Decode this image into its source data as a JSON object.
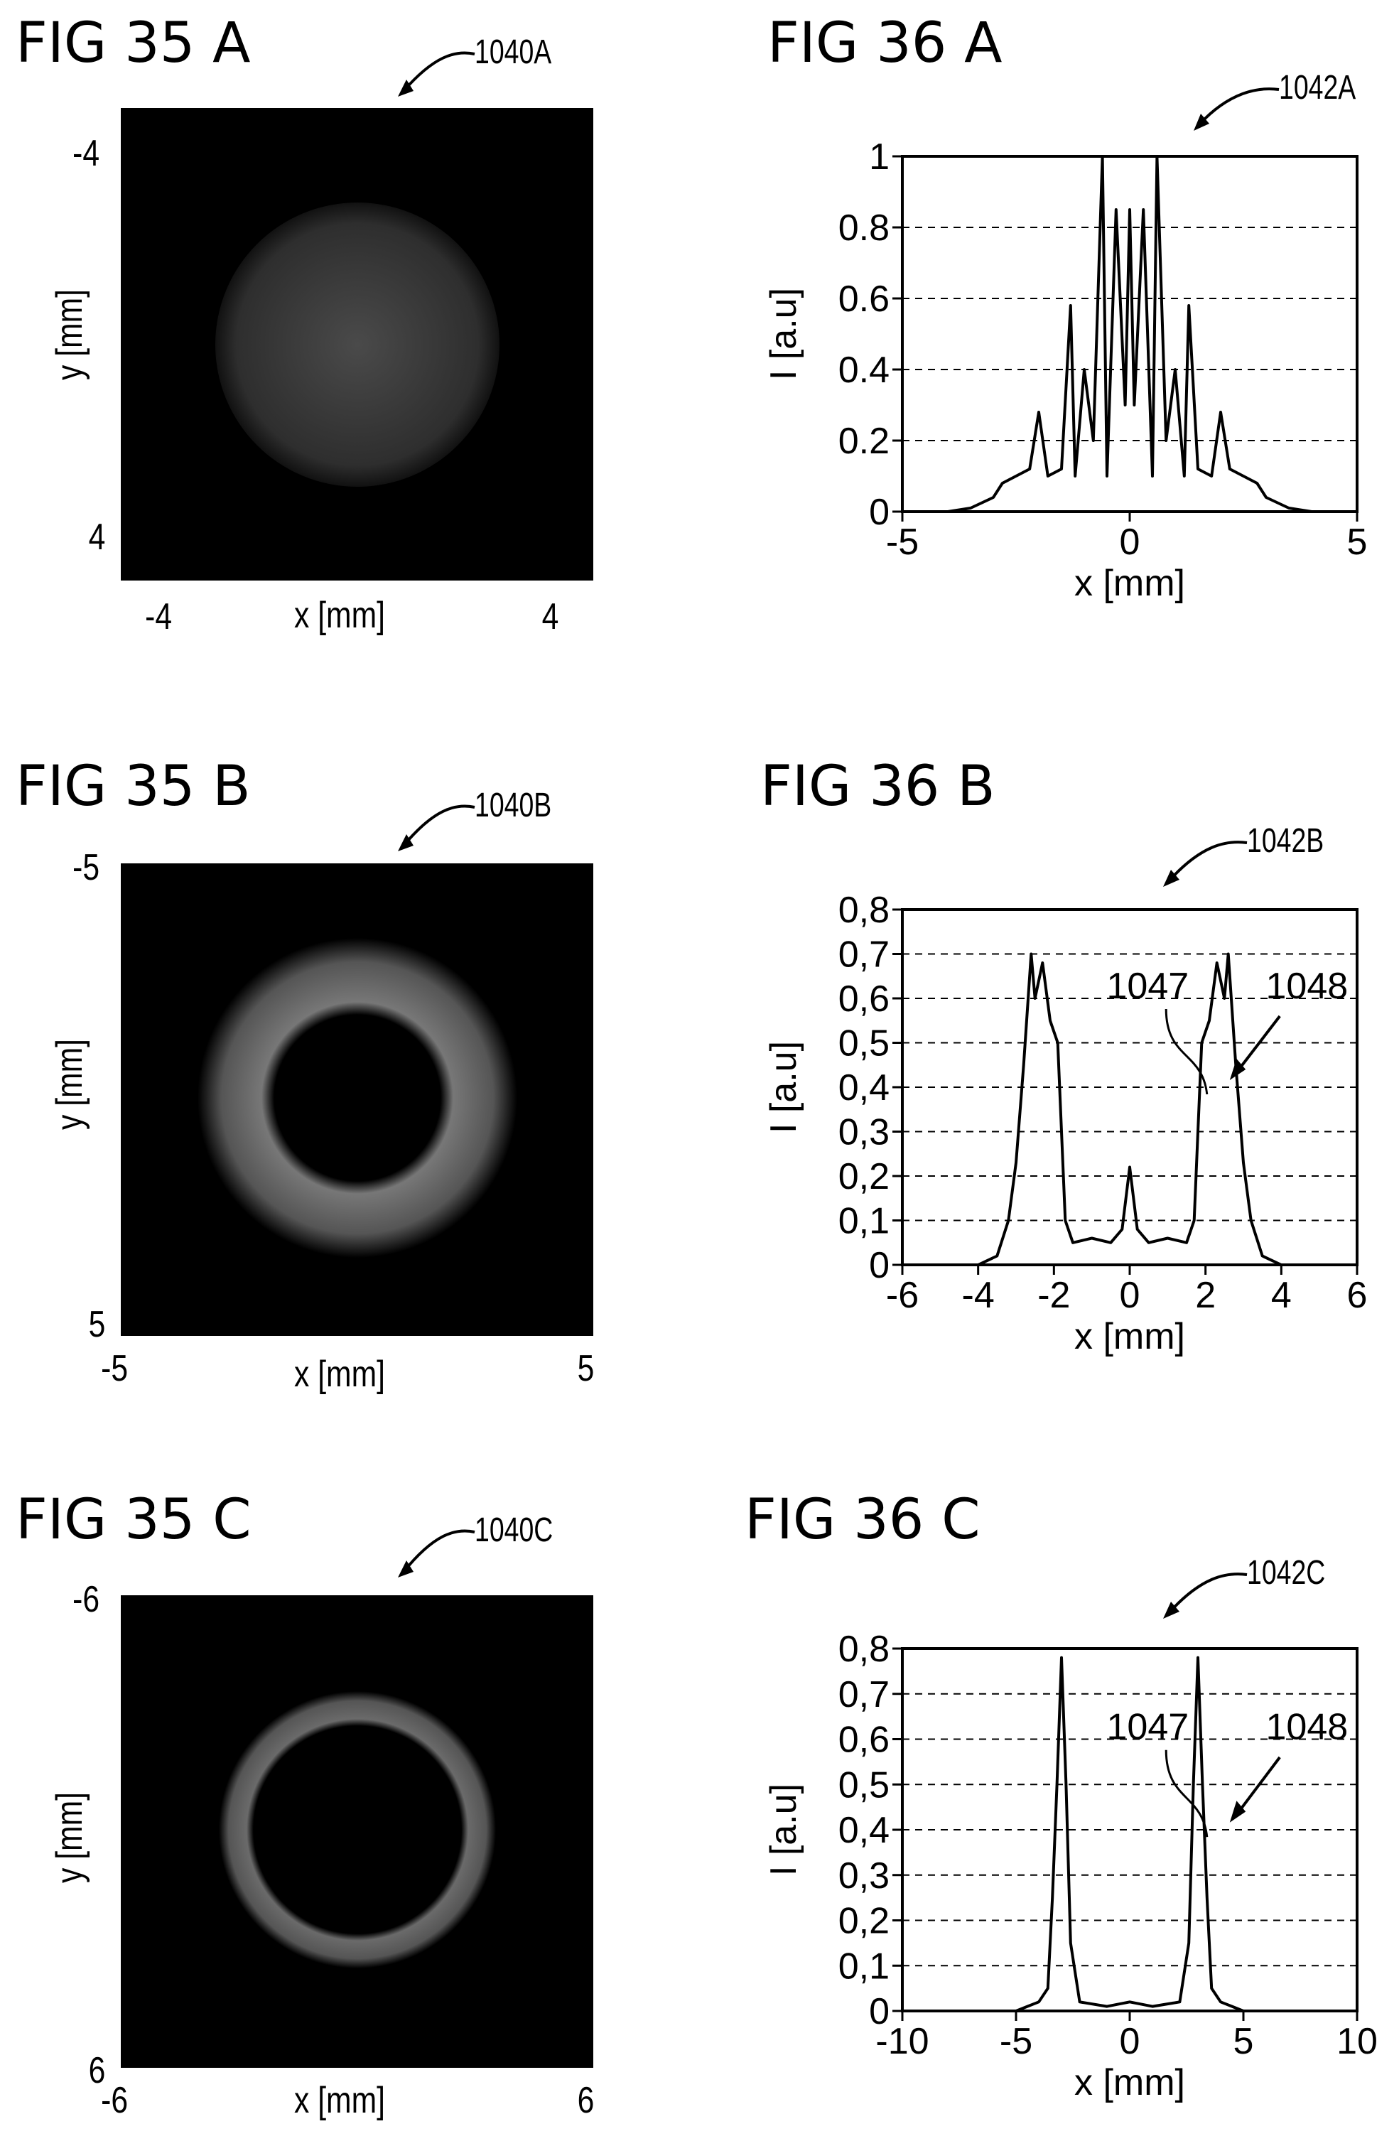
{
  "figures": [
    {
      "id": "35A",
      "title": "FIG 35 A",
      "ref": "1040A",
      "xlabel": "x [mm]",
      "ylabel": "y [mm]",
      "xticks": [
        "-4",
        "4"
      ],
      "yticks": [
        "-4",
        "4"
      ]
    },
    {
      "id": "35B",
      "title": "FIG 35 B",
      "ref": "1040B",
      "xlabel": "x [mm]",
      "ylabel": "y [mm]",
      "xticks": [
        "-5",
        "5"
      ],
      "yticks": [
        "-5",
        "5"
      ]
    },
    {
      "id": "35C",
      "title": "FIG 35 C",
      "ref": "1040C",
      "xlabel": "x [mm]",
      "ylabel": "y [mm]",
      "xticks": [
        "-6",
        "6"
      ],
      "yticks": [
        "-6",
        "6"
      ]
    },
    {
      "id": "36A",
      "title": "FIG 36 A",
      "ref": "1042A"
    },
    {
      "id": "36B",
      "title": "FIG 36 B",
      "ref": "1042B",
      "annotations": [
        "1047",
        "1048"
      ]
    },
    {
      "id": "36C",
      "title": "FIG 36 C",
      "ref": "1042C",
      "annotations": [
        "1047",
        "1048"
      ]
    }
  ],
  "chart_data": [
    {
      "type": "line",
      "name": "FIG 36 A",
      "xlabel": "x [mm]",
      "ylabel": "I [a.u]",
      "xlim": [
        -5,
        5
      ],
      "ylim": [
        0,
        1
      ],
      "xticks": [
        "-5",
        "0",
        "5"
      ],
      "yticks": [
        "0",
        "0.2",
        "0.4",
        "0.6",
        "0.8",
        "1"
      ],
      "grid": "horizontal-dashed",
      "x": [
        -5,
        -4,
        -3.5,
        -3,
        -2.8,
        -2.5,
        -2.2,
        -2,
        -1.8,
        -1.5,
        -1.3,
        -1.2,
        -1,
        -0.8,
        -0.6,
        -0.5,
        -0.3,
        -0.1,
        0,
        0.1,
        0.3,
        0.5,
        0.6,
        0.8,
        1,
        1.2,
        1.3,
        1.5,
        1.8,
        2,
        2.2,
        2.5,
        2.8,
        3,
        3.5,
        4,
        5
      ],
      "y": [
        0,
        0,
        0.01,
        0.04,
        0.08,
        0.1,
        0.12,
        0.28,
        0.1,
        0.12,
        0.58,
        0.1,
        0.4,
        0.2,
        1,
        0.1,
        0.85,
        0.3,
        0.85,
        0.3,
        0.85,
        0.1,
        1,
        0.2,
        0.4,
        0.1,
        0.58,
        0.12,
        0.1,
        0.28,
        0.12,
        0.1,
        0.08,
        0.04,
        0.01,
        0,
        0
      ]
    },
    {
      "type": "line",
      "name": "FIG 36 B",
      "xlabel": "x [mm]",
      "ylabel": "I [a.u]",
      "xlim": [
        -6,
        6
      ],
      "ylim": [
        0,
        0.8
      ],
      "xticks": [
        "-6",
        "-4",
        "-2",
        "0",
        "2",
        "4",
        "6"
      ],
      "yticks": [
        "0",
        "0,1",
        "0,2",
        "0,3",
        "0,4",
        "0,5",
        "0,6",
        "0,7",
        "0,8"
      ],
      "grid": "horizontal-dashed",
      "x": [
        -6,
        -4,
        -3.5,
        -3.2,
        -3,
        -2.8,
        -2.6,
        -2.5,
        -2.3,
        -2.1,
        -1.9,
        -1.7,
        -1.5,
        -1,
        -0.5,
        -0.2,
        0,
        0.2,
        0.5,
        1,
        1.5,
        1.7,
        1.9,
        2.1,
        2.3,
        2.5,
        2.6,
        2.8,
        3,
        3.2,
        3.5,
        4,
        6
      ],
      "y": [
        0,
        0,
        0.02,
        0.1,
        0.23,
        0.45,
        0.7,
        0.6,
        0.68,
        0.55,
        0.5,
        0.1,
        0.05,
        0.06,
        0.05,
        0.08,
        0.22,
        0.08,
        0.05,
        0.06,
        0.05,
        0.1,
        0.5,
        0.55,
        0.68,
        0.6,
        0.7,
        0.45,
        0.23,
        0.1,
        0.02,
        0,
        0
      ]
    },
    {
      "type": "line",
      "name": "FIG 36 C",
      "xlabel": "x [mm]",
      "ylabel": "I [a.u]",
      "xlim": [
        -10,
        10
      ],
      "ylim": [
        0,
        0.8
      ],
      "xticks": [
        "-10",
        "-5",
        "0",
        "5",
        "10"
      ],
      "yticks": [
        "0",
        "0,1",
        "0,2",
        "0,3",
        "0,4",
        "0,5",
        "0,6",
        "0,7",
        "0,8"
      ],
      "grid": "horizontal-dashed",
      "x": [
        -10,
        -5,
        -4.5,
        -4,
        -3.6,
        -3.4,
        -3.2,
        -3,
        -2.8,
        -2.6,
        -2.2,
        -1,
        0,
        1,
        2.2,
        2.6,
        2.8,
        3,
        3.2,
        3.4,
        3.6,
        4,
        4.5,
        5,
        10
      ],
      "y": [
        0,
        0,
        0.01,
        0.02,
        0.05,
        0.25,
        0.5,
        0.78,
        0.5,
        0.15,
        0.02,
        0.01,
        0.02,
        0.01,
        0.02,
        0.15,
        0.5,
        0.78,
        0.5,
        0.25,
        0.05,
        0.02,
        0.01,
        0,
        0
      ]
    }
  ]
}
